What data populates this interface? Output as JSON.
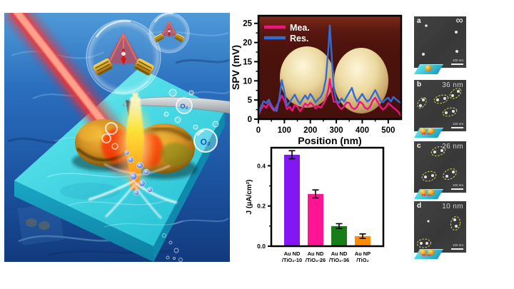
{
  "illustration": {
    "o2_label_large": "O₂",
    "o2_label_small": "O₂"
  },
  "chart_data": [
    {
      "type": "line",
      "title": "",
      "xlabel": "Position (nm)",
      "ylabel": "SPV (mV)",
      "xlim": [
        0,
        550
      ],
      "ylim": [
        0,
        27
      ],
      "xticks": [
        0,
        100,
        200,
        300,
        400,
        500
      ],
      "yticks": [
        0,
        5,
        10,
        15,
        20,
        25
      ],
      "legend_position": "top-left",
      "series": [
        {
          "name": "Mea.",
          "color": "#ED1583",
          "x": [
            0,
            10,
            20,
            30,
            40,
            50,
            60,
            70,
            80,
            90,
            100,
            110,
            120,
            130,
            140,
            150,
            160,
            170,
            180,
            190,
            200,
            210,
            220,
            230,
            240,
            250,
            260,
            270,
            275,
            280,
            290,
            300,
            310,
            320,
            330,
            340,
            350,
            360,
            370,
            380,
            390,
            400,
            410,
            420,
            430,
            440,
            450,
            460,
            470,
            480,
            490,
            500,
            510,
            520,
            530,
            540,
            550
          ],
          "y": [
            1.0,
            2.6,
            3.6,
            3.0,
            4.3,
            3.0,
            2.2,
            3.4,
            4.6,
            6.2,
            4.8,
            2.6,
            3.3,
            2.2,
            3.8,
            3.3,
            2.1,
            3.0,
            4.1,
            3.5,
            4.3,
            3.7,
            2.8,
            3.4,
            3.0,
            4.0,
            5.2,
            8.0,
            10.5,
            8.0,
            4.5,
            4.6,
            3.3,
            2.6,
            3.4,
            4.4,
            4.2,
            3.0,
            2.6,
            3.2,
            4.6,
            4.1,
            3.0,
            2.6,
            3.3,
            4.8,
            5.6,
            4.4,
            3.2,
            2.5,
            3.1,
            4.2,
            3.6,
            3.0,
            2.5,
            1.8,
            0.7
          ]
        },
        {
          "name": "Res.",
          "color": "#2E6CD8",
          "x": [
            0,
            10,
            20,
            30,
            40,
            50,
            60,
            70,
            80,
            90,
            100,
            110,
            120,
            130,
            140,
            150,
            160,
            170,
            180,
            190,
            200,
            210,
            220,
            230,
            240,
            250,
            260,
            270,
            275,
            280,
            290,
            300,
            310,
            320,
            330,
            340,
            350,
            360,
            370,
            380,
            390,
            400,
            410,
            420,
            430,
            440,
            450,
            460,
            470,
            480,
            490,
            500,
            510,
            520,
            530,
            540,
            550
          ],
          "y": [
            1.3,
            3.2,
            4.7,
            4.2,
            5.1,
            3.6,
            2.6,
            2.1,
            5.2,
            10.2,
            7.0,
            3.5,
            4.4,
            5.4,
            6.4,
            5.0,
            4.0,
            5.2,
            6.2,
            5.2,
            6.6,
            5.6,
            4.4,
            5.2,
            5.8,
            7.2,
            10.5,
            19.0,
            24.5,
            19.0,
            8.0,
            5.0,
            4.2,
            5.4,
            4.6,
            5.8,
            7.0,
            8.2,
            6.0,
            4.6,
            5.6,
            6.6,
            5.4,
            4.6,
            5.2,
            6.4,
            7.6,
            6.2,
            4.8,
            4.4,
            5.2,
            5.6,
            4.6,
            5.8,
            5.2,
            4.6,
            4.2
          ]
        }
      ]
    },
    {
      "type": "bar",
      "title": "",
      "xlabel": "",
      "ylabel": "J (μA/cm²)",
      "categories": [
        [
          "Au ND",
          "/TiO₂-10"
        ],
        [
          "Au ND",
          "/TiO₂-26"
        ],
        [
          "Au ND",
          "/TiO₂-36"
        ],
        [
          "Au NP",
          "/TiO₂"
        ]
      ],
      "values": [
        0.455,
        0.26,
        0.1,
        0.05
      ],
      "errors": [
        0.02,
        0.02,
        0.012,
        0.011
      ],
      "colors": [
        "#8316F2",
        "#FF1493",
        "#177D17",
        "#FF8C00"
      ],
      "yticks": [
        0,
        0.2,
        0.4
      ],
      "ytick_labels": [
        "0.0",
        "0.2",
        "0.4"
      ],
      "ylim": [
        0,
        0.49
      ]
    }
  ],
  "sem": {
    "panels": [
      {
        "letter": "a",
        "label": "∞",
        "scalebar": "100 nm",
        "inset_label": ""
      },
      {
        "letter": "b",
        "label": "36 nm",
        "scalebar": "100 nm",
        "inset_label": "36 nm"
      },
      {
        "letter": "c",
        "label": "26 nm",
        "scalebar": "100 nm",
        "inset_label": "26 nm"
      },
      {
        "letter": "d",
        "label": "10 nm",
        "scalebar": "100 nm",
        "inset_label": "10 nm"
      }
    ]
  }
}
